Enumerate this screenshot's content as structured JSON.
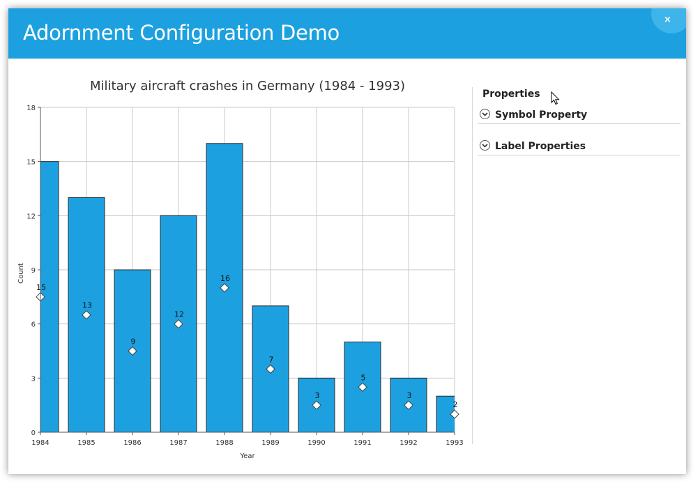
{
  "window": {
    "title": "Adornment Configuration Demo",
    "close_glyph": "×"
  },
  "properties": {
    "title": "Properties",
    "sections": [
      {
        "label": "Symbol Property",
        "icon": "chevron-down-icon"
      },
      {
        "label": "Label Properties",
        "icon": "chevron-down-icon"
      }
    ]
  },
  "colors": {
    "accent": "#1ca0e0",
    "bar": "#1ca0e0",
    "bar_stroke": "#2a2a2a"
  },
  "chart_data": {
    "type": "bar",
    "title": "Military aircraft crashes in Germany (1984 - 1993)",
    "xlabel": "Year",
    "ylabel": "Count",
    "categories": [
      "1984",
      "1985",
      "1986",
      "1987",
      "1988",
      "1989",
      "1990",
      "1991",
      "1992",
      "1993"
    ],
    "values": [
      15,
      13,
      9,
      12,
      16,
      7,
      3,
      5,
      3,
      2
    ],
    "ylim": [
      0,
      18
    ],
    "yticks": [
      0,
      3,
      6,
      9,
      12,
      15,
      18
    ],
    "grid": true,
    "data_labels": true,
    "label_symbol": "diamond"
  }
}
